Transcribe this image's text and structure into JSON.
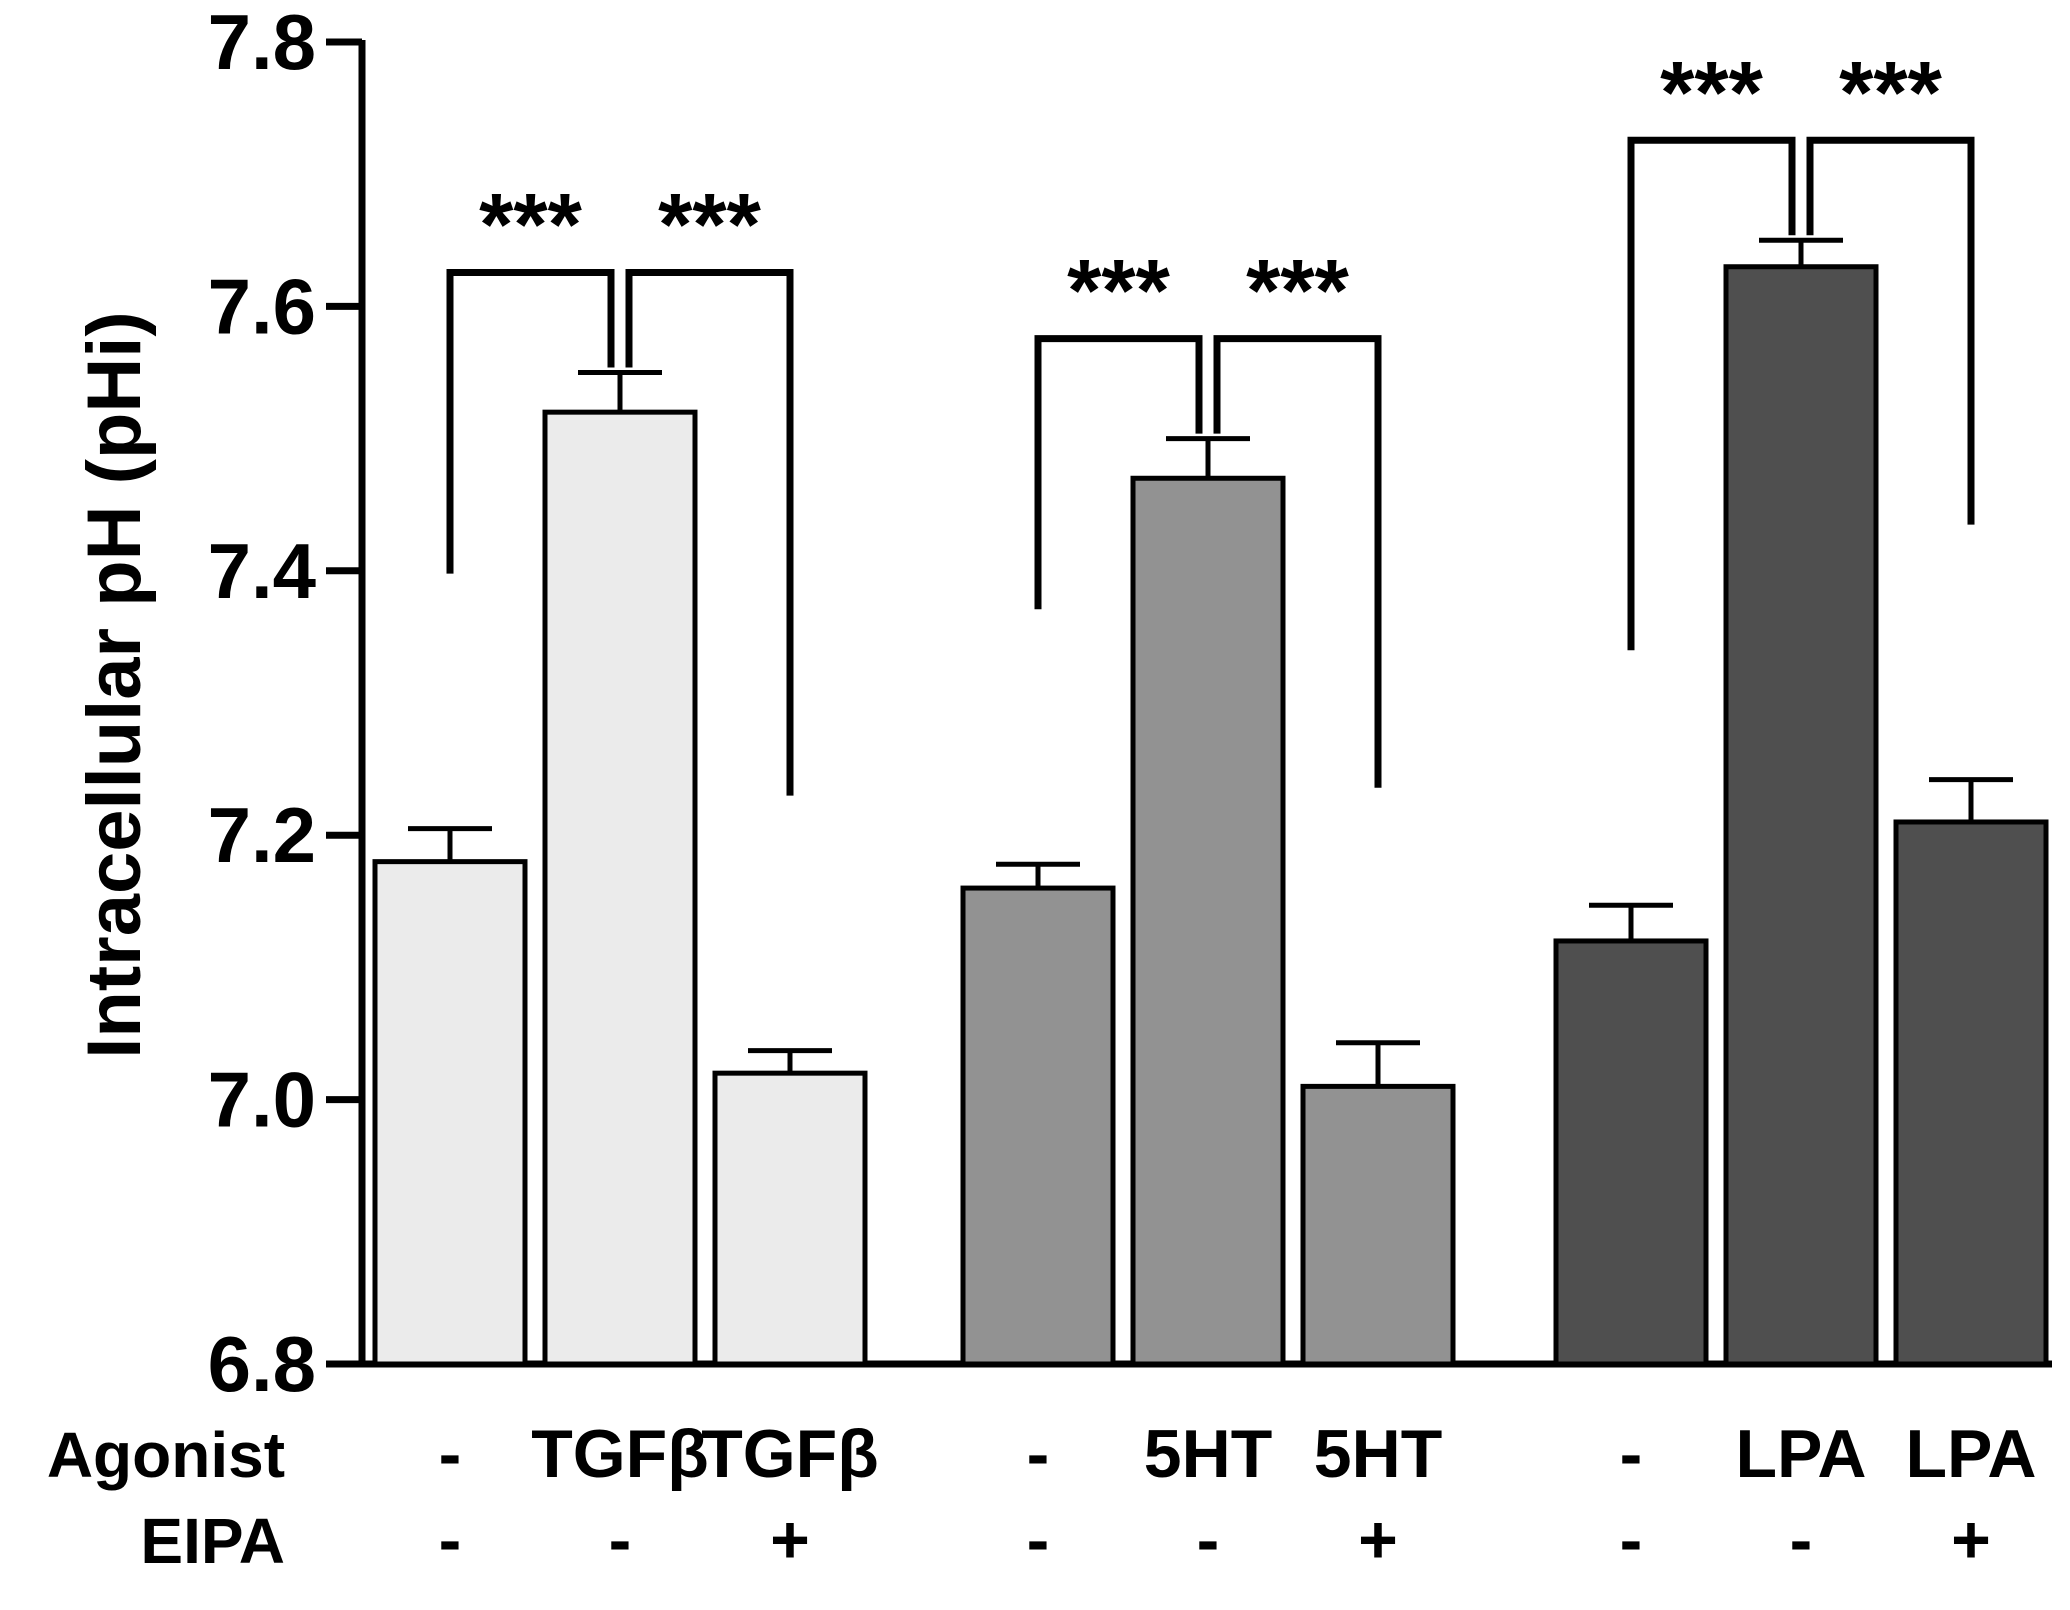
{
  "chart_data": {
    "type": "bar",
    "ylabel": "Intracellular pH (pHi)",
    "ylim": [
      6.8,
      7.8
    ],
    "yticks": [
      "6.8",
      "7.0",
      "7.2",
      "7.4",
      "7.6",
      "7.8"
    ],
    "row_labels": {
      "agonist": "Agonist",
      "eipa": "EIPA"
    },
    "groups": [
      {
        "name": "TGFβ",
        "color": "#ebebeb",
        "bars": [
          {
            "agonist": "-",
            "eipa": "-",
            "value": 7.18,
            "error": 0.025
          },
          {
            "agonist": "TGFβ",
            "eipa": "-",
            "value": 7.52,
            "error": 0.03
          },
          {
            "agonist": "TGFβ",
            "eipa": "+",
            "value": 7.02,
            "error": 0.017
          }
        ],
        "significance": [
          "***",
          "***"
        ]
      },
      {
        "name": "5HT",
        "color": "#929292",
        "bars": [
          {
            "agonist": "-",
            "eipa": "-",
            "value": 7.16,
            "error": 0.018
          },
          {
            "agonist": "5HT",
            "eipa": "-",
            "value": 7.47,
            "error": 0.03
          },
          {
            "agonist": "5HT",
            "eipa": "+",
            "value": 7.01,
            "error": 0.033
          }
        ],
        "significance": [
          "***",
          "***"
        ]
      },
      {
        "name": "LPA",
        "color": "#4f4f4f",
        "bars": [
          {
            "agonist": "-",
            "eipa": "-",
            "value": 7.12,
            "error": 0.027
          },
          {
            "agonist": "LPA",
            "eipa": "-",
            "value": 7.63,
            "error": 0.02
          },
          {
            "agonist": "LPA",
            "eipa": "+",
            "value": 7.21,
            "error": 0.032
          }
        ],
        "significance": [
          "***",
          "***"
        ]
      }
    ]
  }
}
